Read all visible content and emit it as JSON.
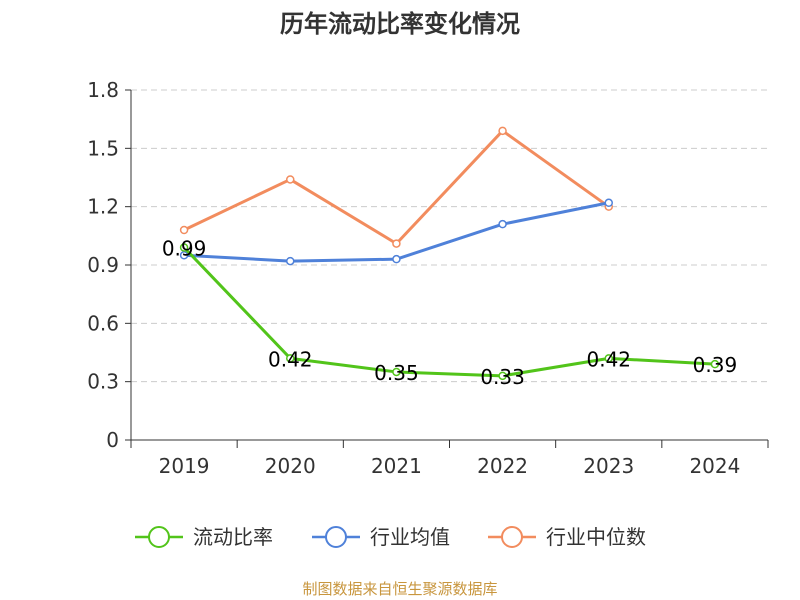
{
  "chart_data": {
    "type": "line",
    "title": "历年流动比率变化情况",
    "categories": [
      "2019",
      "2020",
      "2021",
      "2022",
      "2023",
      "2024"
    ],
    "ylim": [
      0,
      1.8
    ],
    "yticks": [
      "0",
      "0.3",
      "0.6",
      "0.9",
      "1.2",
      "1.5",
      "1.8"
    ],
    "grid": true,
    "legend_position": "bottom",
    "series": [
      {
        "name": "流动比率",
        "color": "#52c41a",
        "values": [
          0.99,
          0.42,
          0.35,
          0.33,
          0.42,
          0.39
        ],
        "labels": [
          "0.99",
          "0.42",
          "0.35",
          "0.33",
          "0.42",
          "0.39"
        ]
      },
      {
        "name": "行业均值",
        "color": "#4f81d9",
        "values": [
          0.95,
          0.92,
          0.93,
          1.11,
          1.22,
          null
        ]
      },
      {
        "name": "行业中位数",
        "color": "#f28c5e",
        "values": [
          1.08,
          1.34,
          1.01,
          1.59,
          1.2,
          null
        ]
      }
    ],
    "source": "制图数据来自恒生聚源数据库"
  }
}
